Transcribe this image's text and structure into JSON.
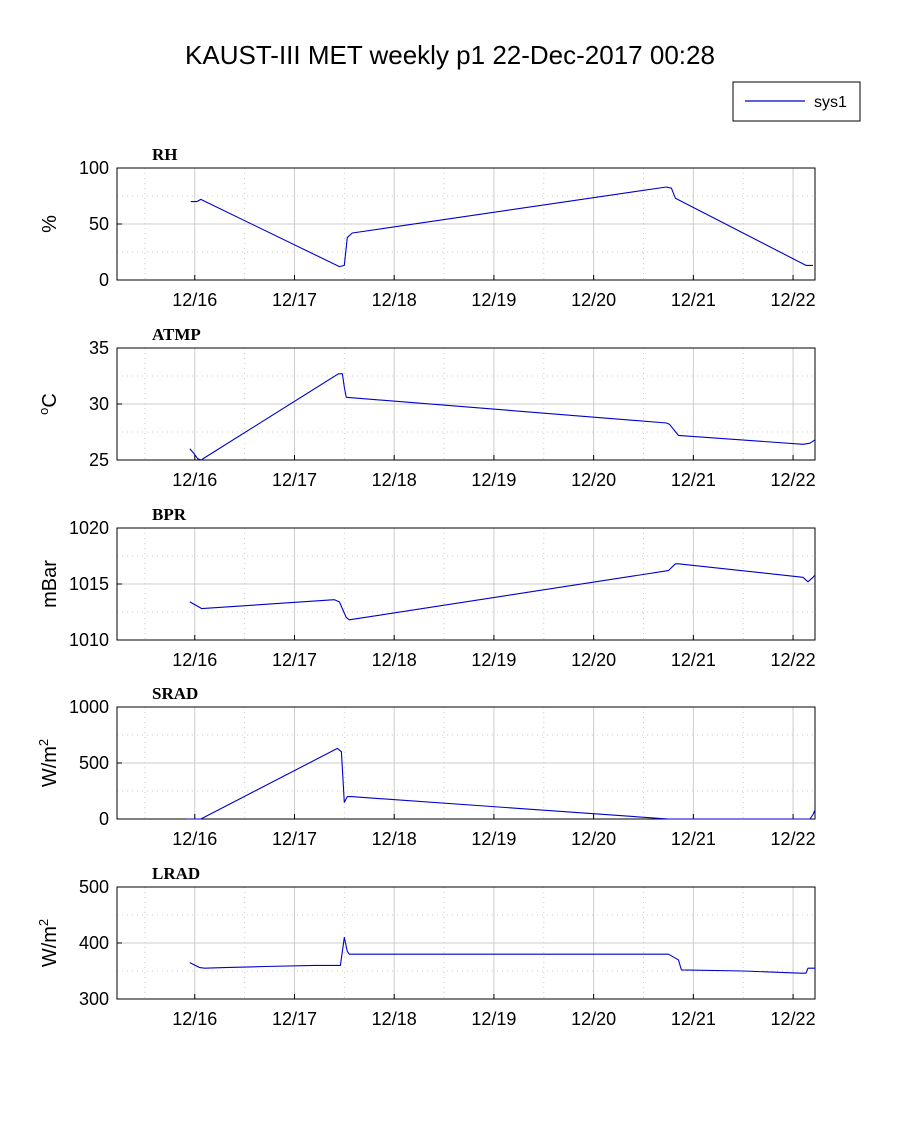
{
  "title": "KAUST-III MET weekly p1 22-Dec-2017 00:28",
  "legend": {
    "entries": [
      {
        "label": "sys1",
        "color": "#0000cc"
      }
    ],
    "placement": "top-right"
  },
  "colors": {
    "line": "#0000cc",
    "grid": "#cccccc",
    "axis": "#000000"
  },
  "chart_data": [
    {
      "type": "line",
      "panel_label": "RH",
      "ylabel": "%",
      "ylabel_sup": "",
      "ylabel_base": "%",
      "xlim": [
        15.22,
        22.22
      ],
      "ylim": [
        0,
        100
      ],
      "yticks": [
        0,
        50,
        100
      ],
      "ytick_labels": [
        "0",
        "50",
        "100"
      ],
      "xticks": [
        16,
        17,
        18,
        19,
        20,
        21,
        22
      ],
      "xtick_labels": [
        "12/16",
        "12/17",
        "12/18",
        "12/19",
        "12/20",
        "12/21",
        "12/22"
      ],
      "grid": true,
      "series": [
        {
          "name": "sys1",
          "x": [
            15.96,
            16.02,
            16.06,
            17.45,
            17.5,
            17.53,
            17.58,
            20.73,
            20.78,
            20.82,
            22.13,
            22.2
          ],
          "y": [
            70,
            70,
            72,
            12,
            13,
            38,
            42,
            83,
            82,
            73,
            13,
            13
          ]
        }
      ]
    },
    {
      "type": "line",
      "panel_label": "ATMP",
      "ylabel": "oC",
      "ylabel_sup": "o",
      "ylabel_base": "C",
      "xlim": [
        15.22,
        22.22
      ],
      "ylim": [
        25,
        35
      ],
      "yticks": [
        25,
        30,
        35
      ],
      "ytick_labels": [
        "25",
        "30",
        "35"
      ],
      "xticks": [
        16,
        17,
        18,
        19,
        20,
        21,
        22
      ],
      "xtick_labels": [
        "12/16",
        "12/17",
        "12/18",
        "12/19",
        "12/20",
        "12/21",
        "12/22"
      ],
      "grid": true,
      "series": [
        {
          "name": "sys1",
          "x": [
            15.95,
            15.99,
            16.03,
            16.07,
            16.08,
            17.44,
            17.48,
            17.5,
            17.52,
            20.73,
            20.76,
            20.85,
            22.1,
            22.17,
            22.22
          ],
          "y": [
            26,
            25.6,
            25.1,
            25,
            25.1,
            32.7,
            32.7,
            31.5,
            30.6,
            28.3,
            28.2,
            27.2,
            26.4,
            26.5,
            26.8
          ]
        }
      ]
    },
    {
      "type": "line",
      "panel_label": "BPR",
      "ylabel": "mBar",
      "ylabel_sup": "",
      "ylabel_base": "mBar",
      "xlim": [
        15.22,
        22.22
      ],
      "ylim": [
        1010,
        1020
      ],
      "yticks": [
        1010,
        1015,
        1020
      ],
      "ytick_labels": [
        "1010",
        "1015",
        "1020"
      ],
      "xticks": [
        16,
        17,
        18,
        19,
        20,
        21,
        22
      ],
      "xtick_labels": [
        "12/16",
        "12/17",
        "12/18",
        "12/19",
        "12/20",
        "12/21",
        "12/22"
      ],
      "grid": true,
      "series": [
        {
          "name": "sys1",
          "x": [
            15.95,
            16.05,
            16.07,
            17.4,
            17.45,
            17.52,
            17.55,
            20.75,
            20.82,
            20.85,
            22.1,
            22.15,
            22.2,
            22.22
          ],
          "y": [
            1013.4,
            1012.9,
            1012.8,
            1013.6,
            1013.4,
            1012,
            1011.8,
            1016.2,
            1016.8,
            1016.8,
            1015.6,
            1015.2,
            1015.6,
            1015.8
          ]
        }
      ]
    },
    {
      "type": "line",
      "panel_label": "SRAD",
      "ylabel": "W/m2",
      "ylabel_sup": "2",
      "ylabel_base": "W/m",
      "xlim": [
        15.22,
        22.22
      ],
      "ylim": [
        0,
        1000
      ],
      "yticks": [
        0,
        500,
        1000
      ],
      "ytick_labels": [
        "0",
        "500",
        "1000"
      ],
      "xticks": [
        16,
        17,
        18,
        19,
        20,
        21,
        22
      ],
      "xtick_labels": [
        "12/16",
        "12/17",
        "12/18",
        "12/19",
        "12/20",
        "12/21",
        "12/22"
      ],
      "grid": true,
      "series": [
        {
          "name": "sys1",
          "x": [
            15.92,
            16.06,
            17.43,
            17.47,
            17.5,
            17.53,
            17.57,
            20.75,
            22.17,
            22.2,
            22.22
          ],
          "y": [
            0,
            0,
            630,
            600,
            150,
            200,
            200,
            0,
            0,
            40,
            80
          ]
        }
      ]
    },
    {
      "type": "line",
      "panel_label": "LRAD",
      "ylabel": "W/m2",
      "ylabel_sup": "2",
      "ylabel_base": "W/m",
      "xlim": [
        15.22,
        22.22
      ],
      "ylim": [
        300,
        500
      ],
      "yticks": [
        300,
        400,
        500
      ],
      "ytick_labels": [
        "300",
        "400",
        "500"
      ],
      "xticks": [
        16,
        17,
        18,
        19,
        20,
        21,
        22
      ],
      "xtick_labels": [
        "12/16",
        "12/17",
        "12/18",
        "12/19",
        "12/20",
        "12/21",
        "12/22"
      ],
      "grid": true,
      "series": [
        {
          "name": "sys1",
          "x": [
            15.95,
            16.05,
            16.1,
            16.3,
            16.7,
            17.2,
            17.46,
            17.5,
            17.53,
            17.55,
            20.75,
            20.85,
            20.88,
            21.5,
            22.08,
            22.13,
            22.15,
            22.22
          ],
          "y": [
            365,
            356,
            355,
            356,
            358,
            360,
            360,
            410,
            385,
            380,
            380,
            370,
            352,
            350,
            346,
            346,
            355,
            355
          ]
        }
      ]
    }
  ]
}
